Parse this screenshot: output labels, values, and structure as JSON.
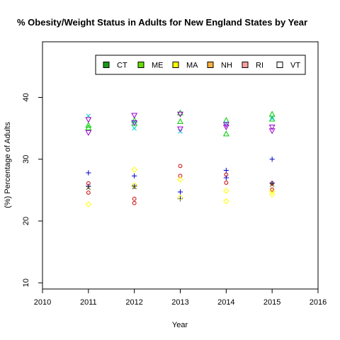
{
  "chart_data": {
    "type": "scatter",
    "title": "% Obesity/Weight Status in Adults for New England States by Year",
    "xlabel": "Year",
    "ylabel": "(%) Percentage of Adults",
    "xlim": [
      2010,
      2016
    ],
    "ylim": [
      9,
      49
    ],
    "xticks": [
      2010,
      2011,
      2012,
      2013,
      2014,
      2015,
      2016
    ],
    "yticks": [
      10,
      20,
      30,
      40
    ],
    "grid": false,
    "legend": {
      "placement": "top-right",
      "entries": [
        {
          "label": "CT",
          "color": "#1a9a1a"
        },
        {
          "label": "ME",
          "color": "#66dd00"
        },
        {
          "label": "MA",
          "color": "#ffff00"
        },
        {
          "label": "NH",
          "color": "#ffb040"
        },
        {
          "label": "RI",
          "color": "#ffa0a0"
        },
        {
          "label": "VT",
          "color": "#ffffff"
        }
      ]
    },
    "series": [
      {
        "symbol": "circle",
        "color": "#cc0000",
        "x": [
          2011,
          2011,
          2012,
          2012,
          2013,
          2013,
          2014,
          2014,
          2015,
          2015
        ],
        "y": [
          26.1,
          24.6,
          23.6,
          22.9,
          28.9,
          27.3,
          27.5,
          26.2,
          26.1,
          25.1
        ]
      },
      {
        "symbol": "triangle-up",
        "color": "#00cc00",
        "x": [
          2011,
          2011,
          2012,
          2012,
          2013,
          2013,
          2014,
          2014,
          2015,
          2015
        ],
        "y": [
          35.5,
          35.1,
          36.3,
          35.8,
          37.5,
          36.1,
          36.3,
          34.1,
          37.3,
          36.5
        ]
      },
      {
        "symbol": "plus",
        "color": "#0000cc",
        "x": [
          2011,
          2011,
          2012,
          2012,
          2013,
          2013,
          2014,
          2014,
          2015,
          2015
        ],
        "y": [
          27.8,
          25.6,
          27.3,
          25.6,
          24.7,
          23.6,
          28.2,
          27.0,
          30.0,
          26.1
        ]
      },
      {
        "symbol": "cross",
        "color": "#00cccc",
        "x": [
          2011,
          2012,
          2012,
          2013,
          2014,
          2015
        ],
        "y": [
          37.0,
          35.0,
          36.0,
          34.5,
          35.8,
          36.6
        ]
      },
      {
        "symbol": "diamond",
        "color": "#ffff00",
        "x": [
          2011,
          2012,
          2012,
          2013,
          2014,
          2015
        ],
        "y": [
          22.7,
          28.3,
          25.8,
          26.7,
          24.9,
          24.3
        ]
      },
      {
        "symbol": "diamond",
        "color": "#ffff00",
        "x": [
          2013,
          2014,
          2015
        ],
        "y": [
          23.8,
          23.2,
          24.8
        ]
      },
      {
        "symbol": "triangle-down",
        "color": "#9900cc",
        "x": [
          2011,
          2011,
          2012,
          2012,
          2013,
          2013,
          2014,
          2014,
          2015,
          2015
        ],
        "y": [
          36.4,
          34.3,
          37.1,
          35.9,
          37.3,
          34.9,
          35.2,
          35.6,
          35.2,
          34.6
        ]
      },
      {
        "symbol": "cross",
        "color": "#555500",
        "x": [
          2011,
          2012,
          2015
        ],
        "y": [
          25.4,
          25.5,
          25.9
        ]
      }
    ]
  }
}
